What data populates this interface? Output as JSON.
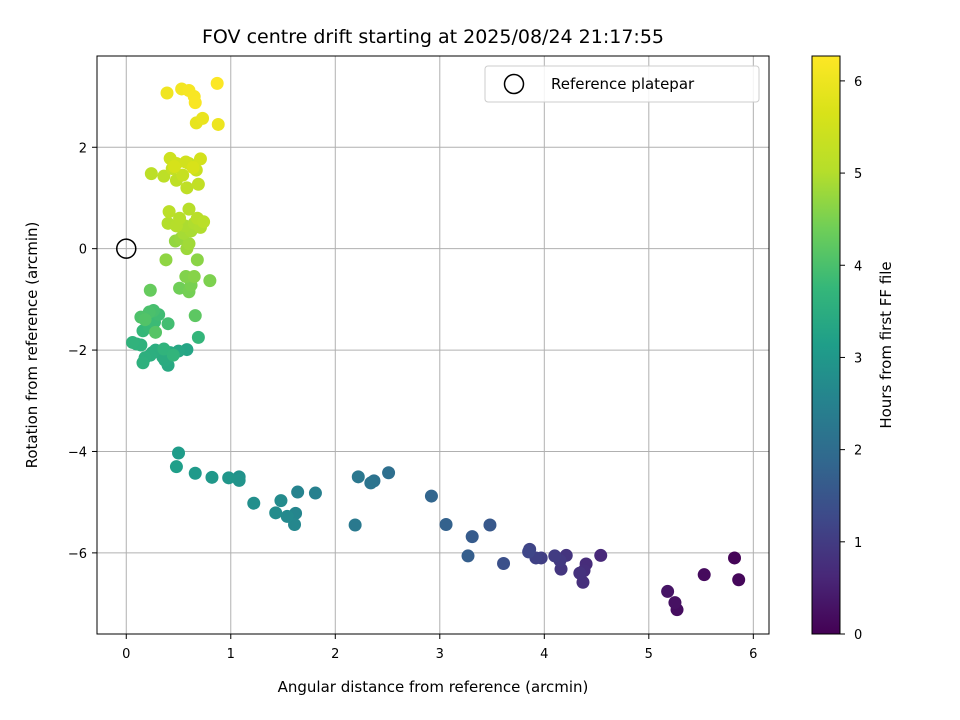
{
  "chart_data": {
    "type": "scatter",
    "title": "FOV centre drift starting at 2025/08/24 21:17:55",
    "xlabel": "Angular distance from reference (arcmin)",
    "ylabel": "Rotation from reference (arcmin)",
    "colorbar_label": "Hours from first FF file",
    "xlim": [
      -0.28,
      6.15
    ],
    "ylim": [
      -7.6,
      3.8
    ],
    "clim": [
      0,
      6.27
    ],
    "x_ticks": [
      0,
      1,
      2,
      3,
      4,
      5,
      6
    ],
    "y_ticks": [
      -6,
      -4,
      -2,
      0,
      2
    ],
    "colorbar_ticks": [
      0,
      1,
      2,
      3,
      4,
      5,
      6
    ],
    "colormap": "viridis",
    "grid": true,
    "legend": {
      "position": "top-right",
      "entries": [
        "Reference platepar"
      ]
    },
    "reference": {
      "x": 0,
      "y": 0
    },
    "points": [
      {
        "x": 5.82,
        "y": -6.1,
        "c": 0.05
      },
      {
        "x": 5.86,
        "y": -6.53,
        "c": 0.1
      },
      {
        "x": 5.53,
        "y": -6.43,
        "c": 0.15
      },
      {
        "x": 5.27,
        "y": -7.12,
        "c": 0.2
      },
      {
        "x": 5.25,
        "y": -6.98,
        "c": 0.25
      },
      {
        "x": 5.18,
        "y": -6.76,
        "c": 0.3
      },
      {
        "x": 4.54,
        "y": -6.05,
        "c": 0.65
      },
      {
        "x": 4.4,
        "y": -6.22,
        "c": 0.7
      },
      {
        "x": 4.38,
        "y": -6.35,
        "c": 0.75
      },
      {
        "x": 4.37,
        "y": -6.58,
        "c": 0.78
      },
      {
        "x": 4.34,
        "y": -6.4,
        "c": 0.82
      },
      {
        "x": 4.21,
        "y": -6.05,
        "c": 0.85
      },
      {
        "x": 4.16,
        "y": -6.32,
        "c": 0.9
      },
      {
        "x": 4.15,
        "y": -6.15,
        "c": 0.95
      },
      {
        "x": 4.1,
        "y": -6.06,
        "c": 1.0
      },
      {
        "x": 3.97,
        "y": -6.1,
        "c": 1.05
      },
      {
        "x": 3.92,
        "y": -6.1,
        "c": 1.1
      },
      {
        "x": 3.86,
        "y": -5.93,
        "c": 1.15
      },
      {
        "x": 3.85,
        "y": -5.98,
        "c": 1.2
      },
      {
        "x": 3.61,
        "y": -6.21,
        "c": 1.4
      },
      {
        "x": 3.48,
        "y": -5.45,
        "c": 1.55
      },
      {
        "x": 3.31,
        "y": -5.68,
        "c": 1.62
      },
      {
        "x": 3.27,
        "y": -6.06,
        "c": 1.68
      },
      {
        "x": 3.06,
        "y": -5.44,
        "c": 1.75
      },
      {
        "x": 2.92,
        "y": -4.88,
        "c": 1.85
      },
      {
        "x": 2.51,
        "y": -4.42,
        "c": 2.05
      },
      {
        "x": 2.37,
        "y": -4.58,
        "c": 2.12
      },
      {
        "x": 2.34,
        "y": -4.62,
        "c": 2.18
      },
      {
        "x": 2.22,
        "y": -4.5,
        "c": 2.25
      },
      {
        "x": 2.19,
        "y": -5.45,
        "c": 2.3
      },
      {
        "x": 1.81,
        "y": -4.82,
        "c": 2.45
      },
      {
        "x": 1.64,
        "y": -4.8,
        "c": 2.52
      },
      {
        "x": 1.62,
        "y": -5.22,
        "c": 2.58
      },
      {
        "x": 1.61,
        "y": -5.44,
        "c": 2.62
      },
      {
        "x": 1.54,
        "y": -5.28,
        "c": 2.66
      },
      {
        "x": 1.48,
        "y": -4.97,
        "c": 2.7
      },
      {
        "x": 1.43,
        "y": -5.21,
        "c": 2.74
      },
      {
        "x": 1.22,
        "y": -5.02,
        "c": 2.8
      },
      {
        "x": 1.08,
        "y": -4.5,
        "c": 2.86
      },
      {
        "x": 1.08,
        "y": -4.57,
        "c": 2.9
      },
      {
        "x": 0.98,
        "y": -4.52,
        "c": 2.95
      },
      {
        "x": 0.82,
        "y": -4.51,
        "c": 3.0
      },
      {
        "x": 0.66,
        "y": -4.43,
        "c": 3.05
      },
      {
        "x": 0.5,
        "y": -4.03,
        "c": 3.1
      },
      {
        "x": 0.48,
        "y": -4.3,
        "c": 3.15
      },
      {
        "x": 0.58,
        "y": -1.99,
        "c": 3.3
      },
      {
        "x": 0.5,
        "y": -2.02,
        "c": 3.35
      },
      {
        "x": 0.42,
        "y": -2.05,
        "c": 3.4
      },
      {
        "x": 0.4,
        "y": -2.3,
        "c": 3.42
      },
      {
        "x": 0.37,
        "y": -2.2,
        "c": 3.45
      },
      {
        "x": 0.35,
        "y": -2.14,
        "c": 3.47
      },
      {
        "x": 0.28,
        "y": -2.0,
        "c": 3.5
      },
      {
        "x": 0.25,
        "y": -2.05,
        "c": 3.52
      },
      {
        "x": 0.23,
        "y": -2.1,
        "c": 3.54
      },
      {
        "x": 0.18,
        "y": -2.15,
        "c": 3.56
      },
      {
        "x": 0.16,
        "y": -2.25,
        "c": 3.58
      },
      {
        "x": 0.14,
        "y": -1.9,
        "c": 3.6
      },
      {
        "x": 0.1,
        "y": -1.88,
        "c": 3.62
      },
      {
        "x": 0.06,
        "y": -1.85,
        "c": 3.64
      },
      {
        "x": 0.36,
        "y": -1.98,
        "c": 3.66
      },
      {
        "x": 0.45,
        "y": -2.1,
        "c": 3.68
      },
      {
        "x": 0.69,
        "y": -1.75,
        "c": 3.72
      },
      {
        "x": 0.16,
        "y": -1.62,
        "c": 3.76
      },
      {
        "x": 0.22,
        "y": -1.55,
        "c": 3.8
      },
      {
        "x": 0.27,
        "y": -1.45,
        "c": 3.84
      },
      {
        "x": 0.31,
        "y": -1.3,
        "c": 3.88
      },
      {
        "x": 0.4,
        "y": -1.48,
        "c": 3.92
      },
      {
        "x": 0.26,
        "y": -1.22,
        "c": 3.96
      },
      {
        "x": 0.22,
        "y": -1.25,
        "c": 4.0
      },
      {
        "x": 0.14,
        "y": -1.35,
        "c": 4.04
      },
      {
        "x": 0.18,
        "y": -1.4,
        "c": 4.08
      },
      {
        "x": 0.28,
        "y": -1.65,
        "c": 4.12
      },
      {
        "x": 0.66,
        "y": -1.32,
        "c": 4.2
      },
      {
        "x": 0.23,
        "y": -0.82,
        "c": 4.3
      },
      {
        "x": 0.51,
        "y": -0.78,
        "c": 4.4
      },
      {
        "x": 0.6,
        "y": -0.85,
        "c": 4.44
      },
      {
        "x": 0.62,
        "y": -0.72,
        "c": 4.48
      },
      {
        "x": 0.8,
        "y": -0.63,
        "c": 4.52
      },
      {
        "x": 0.57,
        "y": -0.55,
        "c": 4.56
      },
      {
        "x": 0.65,
        "y": -0.55,
        "c": 4.6
      },
      {
        "x": 0.68,
        "y": -0.22,
        "c": 4.64
      },
      {
        "x": 0.38,
        "y": -0.22,
        "c": 4.68
      },
      {
        "x": 0.47,
        "y": 0.15,
        "c": 4.72
      },
      {
        "x": 0.52,
        "y": 0.2,
        "c": 4.76
      },
      {
        "x": 0.58,
        "y": 0.0,
        "c": 4.8
      },
      {
        "x": 0.6,
        "y": 0.1,
        "c": 4.84
      },
      {
        "x": 0.55,
        "y": 0.3,
        "c": 4.88
      },
      {
        "x": 0.62,
        "y": 0.35,
        "c": 4.92
      },
      {
        "x": 0.56,
        "y": 0.45,
        "c": 4.94
      },
      {
        "x": 0.65,
        "y": 0.5,
        "c": 4.96
      },
      {
        "x": 0.71,
        "y": 0.42,
        "c": 4.98
      },
      {
        "x": 0.4,
        "y": 0.5,
        "c": 5.0
      },
      {
        "x": 0.48,
        "y": 0.45,
        "c": 5.02
      },
      {
        "x": 0.51,
        "y": 0.6,
        "c": 5.04
      },
      {
        "x": 0.6,
        "y": 0.78,
        "c": 5.06
      },
      {
        "x": 0.68,
        "y": 0.6,
        "c": 5.08
      },
      {
        "x": 0.74,
        "y": 0.53,
        "c": 5.1
      },
      {
        "x": 0.41,
        "y": 0.73,
        "c": 5.12
      },
      {
        "x": 0.24,
        "y": 1.48,
        "c": 5.14
      },
      {
        "x": 0.36,
        "y": 1.43,
        "c": 5.16
      },
      {
        "x": 0.48,
        "y": 1.35,
        "c": 5.18
      },
      {
        "x": 0.58,
        "y": 1.2,
        "c": 5.2
      },
      {
        "x": 0.69,
        "y": 1.27,
        "c": 5.24
      },
      {
        "x": 0.44,
        "y": 1.58,
        "c": 5.28
      },
      {
        "x": 0.54,
        "y": 1.45,
        "c": 5.32
      },
      {
        "x": 0.6,
        "y": 1.68,
        "c": 5.36
      },
      {
        "x": 0.67,
        "y": 1.55,
        "c": 5.4
      },
      {
        "x": 0.42,
        "y": 1.78,
        "c": 5.44
      },
      {
        "x": 0.48,
        "y": 1.68,
        "c": 5.48
      },
      {
        "x": 0.57,
        "y": 1.71,
        "c": 5.52
      },
      {
        "x": 0.71,
        "y": 1.77,
        "c": 5.56
      },
      {
        "x": 0.46,
        "y": 1.62,
        "c": 5.6
      },
      {
        "x": 0.64,
        "y": 1.6,
        "c": 5.64
      },
      {
        "x": 0.67,
        "y": 2.48,
        "c": 5.9
      },
      {
        "x": 0.73,
        "y": 2.57,
        "c": 5.95
      },
      {
        "x": 0.88,
        "y": 2.45,
        "c": 6.0
      },
      {
        "x": 0.39,
        "y": 3.07,
        "c": 6.05
      },
      {
        "x": 0.53,
        "y": 3.15,
        "c": 6.1
      },
      {
        "x": 0.6,
        "y": 3.12,
        "c": 6.15
      },
      {
        "x": 0.65,
        "y": 3.0,
        "c": 6.18
      },
      {
        "x": 0.66,
        "y": 2.88,
        "c": 6.2
      },
      {
        "x": 0.87,
        "y": 3.26,
        "c": 6.25
      }
    ]
  }
}
